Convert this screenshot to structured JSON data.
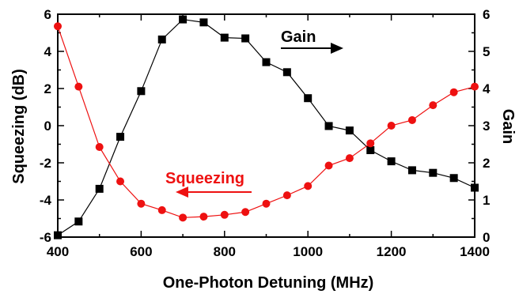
{
  "chart_data": {
    "type": "line",
    "xlabel": "One-Photon Detuning (MHz)",
    "ylabel_left": "Squeezing (dB)",
    "ylabel_right": "Gain",
    "xlim": [
      400,
      1400
    ],
    "ylim_left": [
      -6,
      6
    ],
    "ylim_right": [
      0,
      6
    ],
    "x_ticks": [
      "400",
      "600",
      "800",
      "1000",
      "1200",
      "1400"
    ],
    "y_left_ticks": [
      "-6",
      "-4",
      "-2",
      "0",
      "2",
      "4",
      "6"
    ],
    "y_right_ticks": [
      "0",
      "1",
      "2",
      "3",
      "4",
      "5",
      "6"
    ],
    "grid": false,
    "annotations": {
      "gain_label": "Gain",
      "squeezing_label": "Squeezing"
    },
    "colors": {
      "gain": "#000000",
      "squeezing": "#ee1111"
    },
    "series": [
      {
        "name": "Gain",
        "axis": "right",
        "marker": "square",
        "x": [
          400,
          450,
          500,
          550,
          600,
          650,
          700,
          750,
          800,
          850,
          900,
          950,
          1000,
          1050,
          1100,
          1150,
          1200,
          1250,
          1300,
          1350,
          1400
        ],
        "values": [
          0.05,
          0.42,
          1.3,
          2.7,
          3.93,
          5.32,
          5.86,
          5.78,
          5.37,
          5.35,
          4.71,
          4.44,
          3.74,
          2.99,
          2.87,
          2.34,
          2.04,
          1.8,
          1.73,
          1.59,
          1.33
        ]
      },
      {
        "name": "Squeezing",
        "axis": "left",
        "marker": "circle",
        "x": [
          400,
          450,
          500,
          550,
          600,
          650,
          700,
          750,
          800,
          850,
          900,
          950,
          1000,
          1050,
          1100,
          1150,
          1200,
          1250,
          1300,
          1350,
          1400
        ],
        "values": [
          5.35,
          2.1,
          -1.15,
          -3.0,
          -4.2,
          -4.55,
          -4.95,
          -4.9,
          -4.8,
          -4.65,
          -4.2,
          -3.75,
          -3.25,
          -2.15,
          -1.75,
          -0.95,
          0.0,
          0.3,
          1.1,
          1.8,
          2.1
        ]
      }
    ]
  }
}
